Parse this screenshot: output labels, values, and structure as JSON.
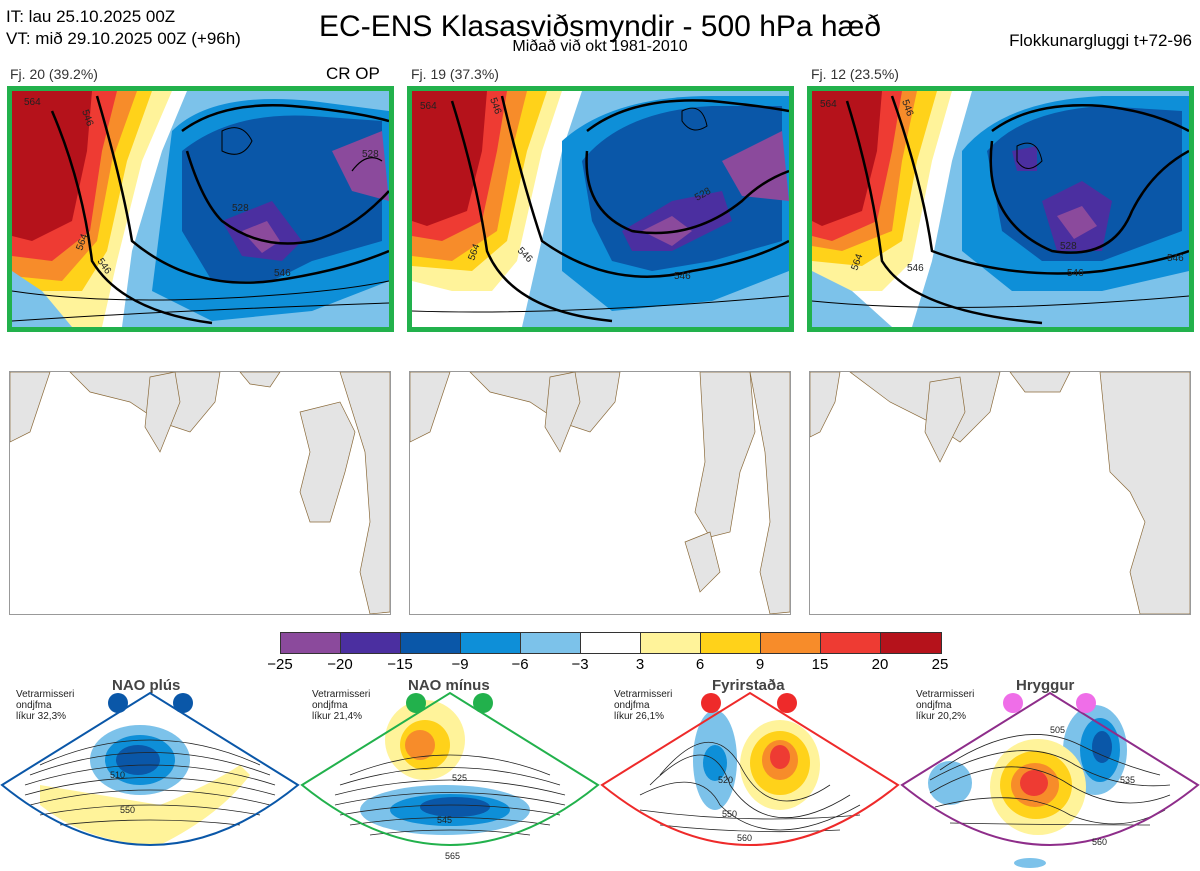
{
  "header": {
    "it_line": "IT: lau 25.10.2025 00Z",
    "vt_line": "VT: mið 29.10.2025 00Z  (+96h)",
    "title": "EC-ENS Klasasviðsmyndir - 500 hPa hæð",
    "subtitle": "Miðað við okt 1981-2010",
    "window": "Flokkunargluggi t+72-96"
  },
  "clusters": [
    {
      "label": "Fj. 20 (39.2%)",
      "tag": "CR OP",
      "contours": [
        "564",
        "546",
        "528",
        "546",
        "564",
        "528",
        "546"
      ]
    },
    {
      "label": "Fj. 19 (37.3%)",
      "tag": "",
      "contours": [
        "564",
        "546",
        "528",
        "546",
        "564",
        "546"
      ]
    },
    {
      "label": "Fj. 12 (23.5%)",
      "tag": "",
      "contours": [
        "564",
        "546",
        "528",
        "546",
        "546",
        "564",
        "546"
      ]
    }
  ],
  "colorbar": {
    "ticks": [
      "−25",
      "−20",
      "−15",
      "−9",
      "−6",
      "−3",
      "3",
      "6",
      "9",
      "15",
      "20",
      "25"
    ],
    "colors": [
      "#8b4a9c",
      "#4b2fa0",
      "#0a57a8",
      "#0e8fd8",
      "#7cc2ea",
      "#ffffff",
      "#fff39a",
      "#ffd21a",
      "#f78c2a",
      "#ee3b33",
      "#b5121b"
    ]
  },
  "regimes": [
    {
      "name": "NAO plús",
      "season": "Vetrarmisseri",
      "months": "ondjfma",
      "likur": "líkur 32,3%",
      "color": "#0a57a8",
      "contours": [
        "510",
        "550"
      ]
    },
    {
      "name": "NAO mínus",
      "season": "Vetrarmisseri",
      "months": "ondjfma",
      "likur": "líkur 21,4%",
      "color": "#22b14c",
      "contours": [
        "525",
        "545",
        "565"
      ]
    },
    {
      "name": "Fyrirstaða",
      "season": "Vetrarmisseri",
      "months": "ondjfma",
      "likur": "líkur 26,1%",
      "color": "#ee2a2a",
      "contours": [
        "520",
        "550",
        "560"
      ]
    },
    {
      "name": "Hryggur",
      "season": "Vetrarmisseri",
      "months": "ondjfma",
      "likur": "líkur 20,2%",
      "color": "#ef6ee8",
      "contours": [
        "505",
        "535",
        "560"
      ]
    }
  ],
  "colors": {
    "cluster_border": "#22b14c",
    "land": "#e4e4e4",
    "coast": "#8a6a3a"
  }
}
